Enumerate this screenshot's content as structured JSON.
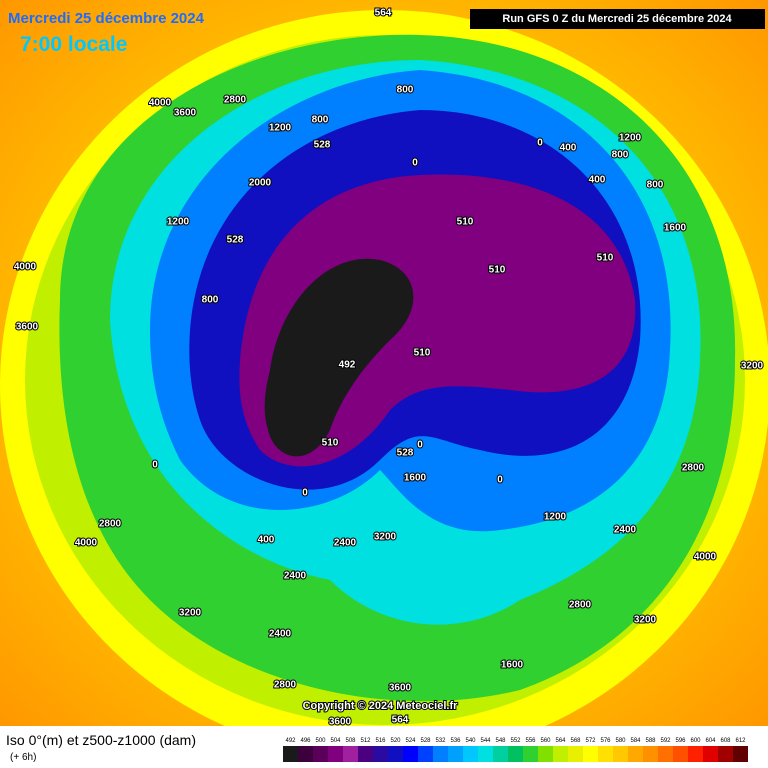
{
  "header": {
    "date": "Mercredi 25 décembre 2024",
    "time": "7:00 locale",
    "run": "Run GFS 0 Z du Mercredi 25 décembre 2024"
  },
  "footer": {
    "title": "Iso 0°(m) et z500-z1000 (dam)",
    "lead": "(+ 6h)",
    "copyright": "Copyright © 2024 Meteociel.fr"
  },
  "scale": [
    {
      "value": 492,
      "color": "#1a1a1a"
    },
    {
      "value": 496,
      "color": "#3c003c"
    },
    {
      "value": 500,
      "color": "#5a005a"
    },
    {
      "value": 504,
      "color": "#800080"
    },
    {
      "value": 508,
      "color": "#a020a0"
    },
    {
      "value": 512,
      "color": "#4b0082"
    },
    {
      "value": 516,
      "color": "#2a0aa0"
    },
    {
      "value": 520,
      "color": "#1010c0"
    },
    {
      "value": 524,
      "color": "#0000ff"
    },
    {
      "value": 528,
      "color": "#0040ff"
    },
    {
      "value": 532,
      "color": "#0080ff"
    },
    {
      "value": 536,
      "color": "#00a0ff"
    },
    {
      "value": 540,
      "color": "#00c8ff"
    },
    {
      "value": 544,
      "color": "#00e0e0"
    },
    {
      "value": 548,
      "color": "#00d0a0"
    },
    {
      "value": 552,
      "color": "#00c060"
    },
    {
      "value": 556,
      "color": "#30d030"
    },
    {
      "value": 560,
      "color": "#80e000"
    },
    {
      "value": 564,
      "color": "#c0f000"
    },
    {
      "value": 568,
      "color": "#e8f000"
    },
    {
      "value": 572,
      "color": "#ffff00"
    },
    {
      "value": 576,
      "color": "#ffe000"
    },
    {
      "value": 580,
      "color": "#ffc800"
    },
    {
      "value": 584,
      "color": "#ffa800"
    },
    {
      "value": 588,
      "color": "#ff9000"
    },
    {
      "value": 592,
      "color": "#ff7000"
    },
    {
      "value": 596,
      "color": "#ff5000"
    },
    {
      "value": 600,
      "color": "#ff2000"
    },
    {
      "value": 604,
      "color": "#e00000"
    },
    {
      "value": 608,
      "color": "#a00000"
    },
    {
      "value": 612,
      "color": "#600000"
    }
  ],
  "map_labels": [
    "2800",
    "3600",
    "4000",
    "800",
    "800",
    "1200",
    "0",
    "400",
    "0",
    "800",
    "1200",
    "400",
    "800",
    "1600",
    "510",
    "510",
    "510",
    "510",
    "492",
    "510",
    "0",
    "400",
    "2400",
    "3200",
    "2400",
    "3200",
    "2400",
    "2800",
    "3600",
    "1600",
    "1200",
    "2400",
    "2800",
    "3200",
    "4000",
    "2800",
    "3200",
    "4000",
    "3600",
    "2800",
    "4000",
    "564",
    "564",
    "3600",
    "528",
    "528",
    "528",
    "1600",
    "0",
    "0",
    "0",
    "2000",
    "1200",
    "800"
  ]
}
